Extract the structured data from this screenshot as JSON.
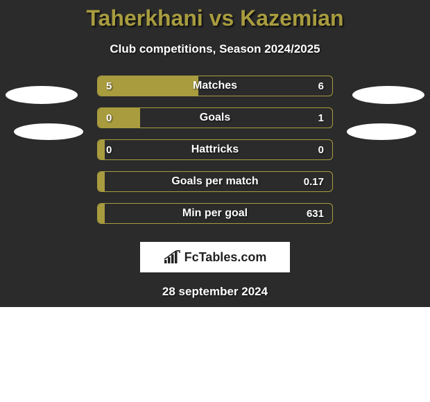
{
  "title": "Taherkhani vs Kazemian",
  "subtitle": "Club competitions, Season 2024/2025",
  "date": "28 september 2024",
  "logo": "FcTables.com",
  "colors": {
    "background": "#2b2b2b",
    "accent": "#a89c3f",
    "text_light": "#ffffff",
    "logo_text": "#222222"
  },
  "bar_track_width": 340,
  "rows": [
    {
      "label": "Matches",
      "left": "5",
      "right": "6",
      "fill_pct": 43
    },
    {
      "label": "Goals",
      "left": "0",
      "right": "1",
      "fill_pct": 18
    },
    {
      "label": "Hattricks",
      "left": "0",
      "right": "0",
      "fill_pct": 3
    },
    {
      "label": "Goals per match",
      "left": "",
      "right": "0.17",
      "fill_pct": 3
    },
    {
      "label": "Min per goal",
      "left": "",
      "right": "631",
      "fill_pct": 3
    }
  ]
}
